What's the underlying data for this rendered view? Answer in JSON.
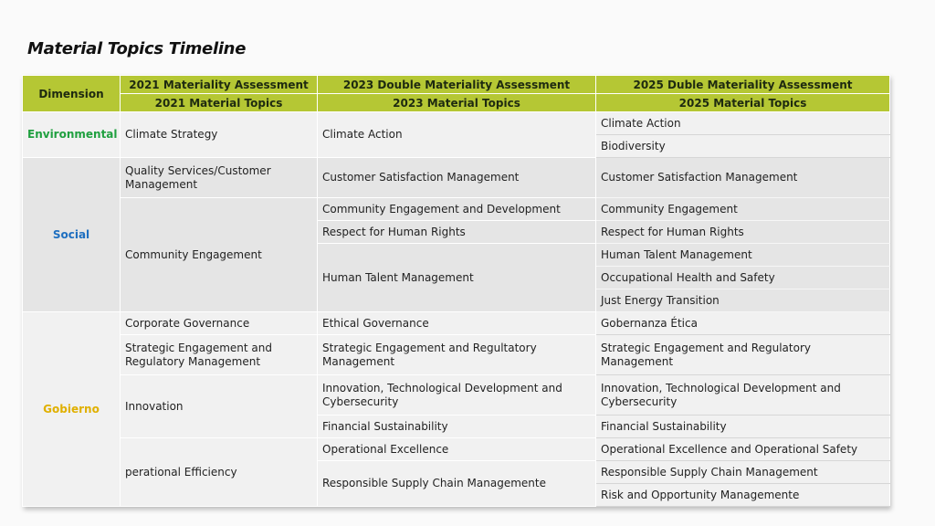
{
  "title": "Material Topics Timeline",
  "header": {
    "dimension": "Dimension",
    "assess_2021": "2021 Materiality Assessment",
    "assess_2023": "2023 Double Materiality Assessment",
    "assess_2025": "2025 Duble Materiality Assessment",
    "topics_2021": "2021 Material Topics",
    "topics_2023": "2023 Material Topics",
    "topics_2025": "2025 Material Topics"
  },
  "colors": {
    "header_bg": "#b5c734",
    "environmental": "#20a040",
    "social": "#1e6fc0",
    "gobierno": "#e0b000"
  },
  "environmental": {
    "label": "Environmental",
    "t2021": [
      "Climate Strategy"
    ],
    "t2023": [
      "Climate Action"
    ],
    "t2025": [
      "Climate Action",
      "Biodiversity"
    ]
  },
  "social": {
    "label": "Social",
    "t2021": [
      "Quality Services/Customer Management",
      "Community Engagement"
    ],
    "t2023": [
      "Customer Satisfaction Management",
      "Community Engagement and Development",
      "Respect for Human Rights",
      "Human Talent Management"
    ],
    "t2025": [
      "Customer Satisfaction Management",
      "Community Engagement",
      "Respect for Human Rights",
      "Human Talent Management",
      "Occupational Health and Safety",
      "Just Energy Transition"
    ]
  },
  "gobierno": {
    "label": "Gobierno",
    "t2021": [
      "Corporate Governance",
      "Strategic Engagement and Regulatory Management",
      "Innovation",
      "perational Efficiency"
    ],
    "t2023": [
      "Ethical Governance",
      "Strategic Engagement and Regultatory Management",
      "Innovation, Technological Development and Cybersecurity",
      "Financial Sustainability",
      "Operational Excellence",
      "Responsible Supply Chain Managemente"
    ],
    "t2025": [
      "Gobernanza Ética",
      "Strategic Engagement and Regulatory Management",
      "Innovation, Technological Development and Cybersecurity",
      "Financial Sustainability",
      "Operational Excellence and Operational Safety",
      "Responsible Supply Chain Management",
      "Risk and Opportunity Managemente"
    ]
  }
}
